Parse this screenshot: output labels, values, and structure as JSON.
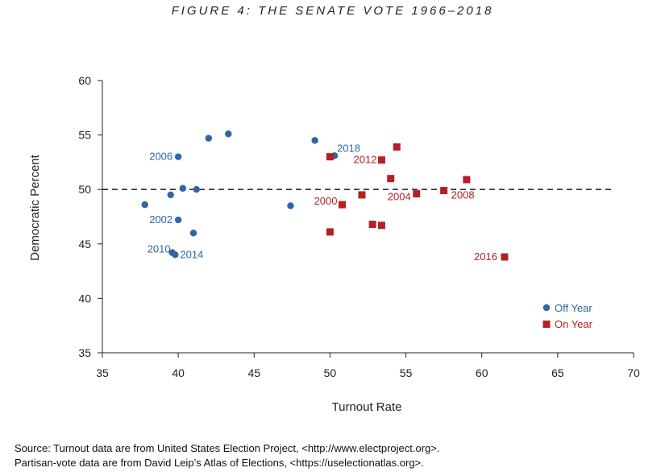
{
  "title": "FIGURE 4: THE SENATE VOTE 1966–2018",
  "colors": {
    "off_year": "#2f66a3",
    "on_year": "#b52025",
    "axis": "#222222"
  },
  "source_lines": [
    "Source: Turnout data are from United States Election Project, <http://www.electproject.org>.",
    "Partisan-vote data are from David Leip’s Atlas of Elections, <https://uselectionatlas.org>."
  ],
  "chart_data": {
    "type": "scatter",
    "title": "FIGURE 4: THE SENATE VOTE 1966–2018",
    "xlabel": "Turnout Rate",
    "ylabel": "Democratic Percent",
    "xlim": [
      35,
      70
    ],
    "ylim": [
      35,
      60
    ],
    "x_ticks": [
      "35",
      "40",
      "45",
      "50",
      "55",
      "60",
      "65",
      "70"
    ],
    "y_ticks": [
      "35",
      "40",
      "45",
      "50",
      "55",
      "60"
    ],
    "reference_line": {
      "y": 50,
      "style": "dashed"
    },
    "legend": {
      "position": "bottom-right",
      "entries": [
        "Off Year",
        "On Year"
      ]
    },
    "series": [
      {
        "name": "Off Year",
        "marker": "circle",
        "color": "#2f66a3",
        "points": [
          {
            "x": 37.8,
            "y": 48.6,
            "label": ""
          },
          {
            "x": 39.5,
            "y": 49.5,
            "label": ""
          },
          {
            "x": 40.0,
            "y": 53.0,
            "label": "2006"
          },
          {
            "x": 40.3,
            "y": 50.1,
            "label": ""
          },
          {
            "x": 41.2,
            "y": 50.0,
            "label": ""
          },
          {
            "x": 40.0,
            "y": 47.2,
            "label": "2002"
          },
          {
            "x": 41.0,
            "y": 46.0,
            "label": ""
          },
          {
            "x": 39.6,
            "y": 44.2,
            "label": "2010"
          },
          {
            "x": 39.8,
            "y": 44.0,
            "label": "2014"
          },
          {
            "x": 42.0,
            "y": 54.7,
            "label": ""
          },
          {
            "x": 43.3,
            "y": 55.1,
            "label": ""
          },
          {
            "x": 47.4,
            "y": 48.5,
            "label": ""
          },
          {
            "x": 49.0,
            "y": 54.5,
            "label": ""
          },
          {
            "x": 50.3,
            "y": 53.1,
            "label": "2018"
          }
        ]
      },
      {
        "name": "On Year",
        "marker": "square",
        "color": "#b52025",
        "points": [
          {
            "x": 50.0,
            "y": 53.0,
            "label": ""
          },
          {
            "x": 53.4,
            "y": 52.7,
            "label": "2012"
          },
          {
            "x": 54.4,
            "y": 53.9,
            "label": ""
          },
          {
            "x": 54.0,
            "y": 51.0,
            "label": ""
          },
          {
            "x": 52.1,
            "y": 49.5,
            "label": ""
          },
          {
            "x": 50.8,
            "y": 48.6,
            "label": "2000"
          },
          {
            "x": 55.7,
            "y": 49.6,
            "label": "2004"
          },
          {
            "x": 57.5,
            "y": 49.9,
            "label": "2008"
          },
          {
            "x": 59.0,
            "y": 50.9,
            "label": ""
          },
          {
            "x": 52.8,
            "y": 46.8,
            "label": ""
          },
          {
            "x": 53.4,
            "y": 46.7,
            "label": ""
          },
          {
            "x": 50.0,
            "y": 46.1,
            "label": ""
          },
          {
            "x": 61.5,
            "y": 43.8,
            "label": "2016"
          }
        ]
      }
    ]
  }
}
